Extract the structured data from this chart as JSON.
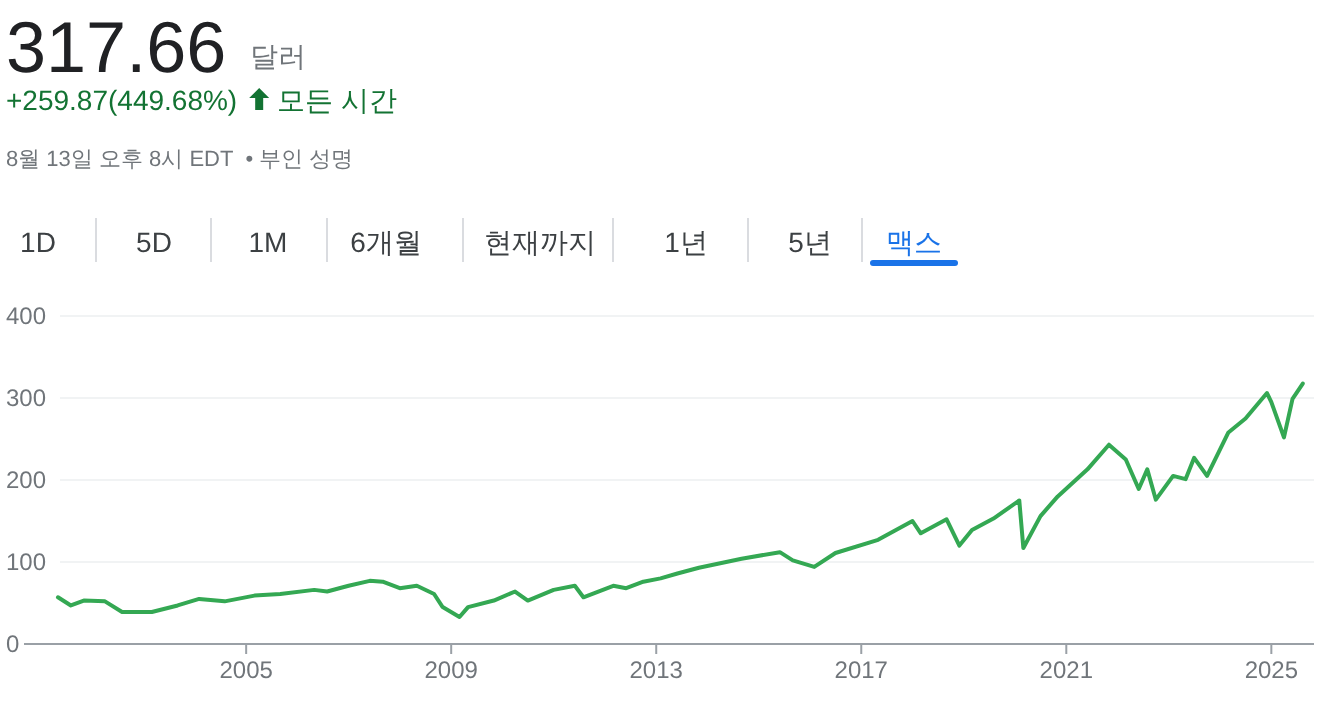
{
  "chart_data": {
    "type": "line",
    "title": "317.66",
    "subtitle": "+259.87(449.68%)",
    "annotations": [
      "달러",
      "모든 시간",
      "8월 13일 오후 8시 EDT",
      "• 부인 성명",
      "1D",
      "5D",
      "1M",
      "6개월",
      "현재까지",
      "1년",
      "5년",
      "맥스"
    ],
    "x": [
      "2001-05",
      "2001-08",
      "2001-11",
      "2002-04",
      "2002-08",
      "2003-03",
      "2003-09",
      "2004-02",
      "2004-08",
      "2005-03",
      "2005-09",
      "2006-05",
      "2006-08",
      "2007-01",
      "2007-06",
      "2007-09",
      "2008-01",
      "2008-05",
      "2008-09",
      "2008-11",
      "2009-03",
      "2009-05",
      "2009-11",
      "2010-04",
      "2010-07",
      "2011-01",
      "2011-06",
      "2011-08",
      "2012-03",
      "2012-06",
      "2012-10",
      "2013-02",
      "2013-06",
      "2013-11",
      "2014-09",
      "2015-06",
      "2015-09",
      "2016-02",
      "2016-07",
      "2017-05",
      "2018-01",
      "2018-03",
      "2018-09",
      "2018-12",
      "2019-03",
      "2019-08",
      "2020-02",
      "2020-03",
      "2020-07",
      "2020-11",
      "2021-06",
      "2021-11",
      "2022-03",
      "2022-06",
      "2022-08",
      "2022-10",
      "2023-02",
      "2023-05",
      "2023-07",
      "2023-10",
      "2024-03",
      "2024-07",
      "2024-12",
      "2025-01",
      "2025-04",
      "2025-06",
      "2025-08-13"
    ],
    "series": [
      {
        "color": "#34a853",
        "values": [
          57,
          47,
          53,
          52,
          39,
          39,
          47,
          55,
          52,
          59,
          61,
          66,
          64,
          71,
          77,
          76,
          68,
          71,
          61,
          45,
          33,
          45,
          53,
          64,
          53,
          66,
          71,
          57,
          71,
          68,
          76,
          80,
          86,
          93,
          104,
          112,
          102,
          94,
          111,
          127,
          150,
          135,
          152,
          120,
          139,
          153,
          175,
          117,
          156,
          180,
          213,
          243,
          225,
          189,
          213,
          176,
          205,
          201,
          227,
          205,
          258,
          275,
          306,
          295,
          252,
          299,
          317.66
        ]
      }
    ],
    "xlim": [
      "2000-09",
      "2025-11"
    ],
    "xticks": [
      "2005",
      "2009",
      "2013",
      "2017",
      "2021",
      "2025"
    ],
    "ylim": [
      0,
      400
    ],
    "yticks": [
      0,
      100,
      200,
      300,
      400
    ],
    "grid": "y"
  }
}
